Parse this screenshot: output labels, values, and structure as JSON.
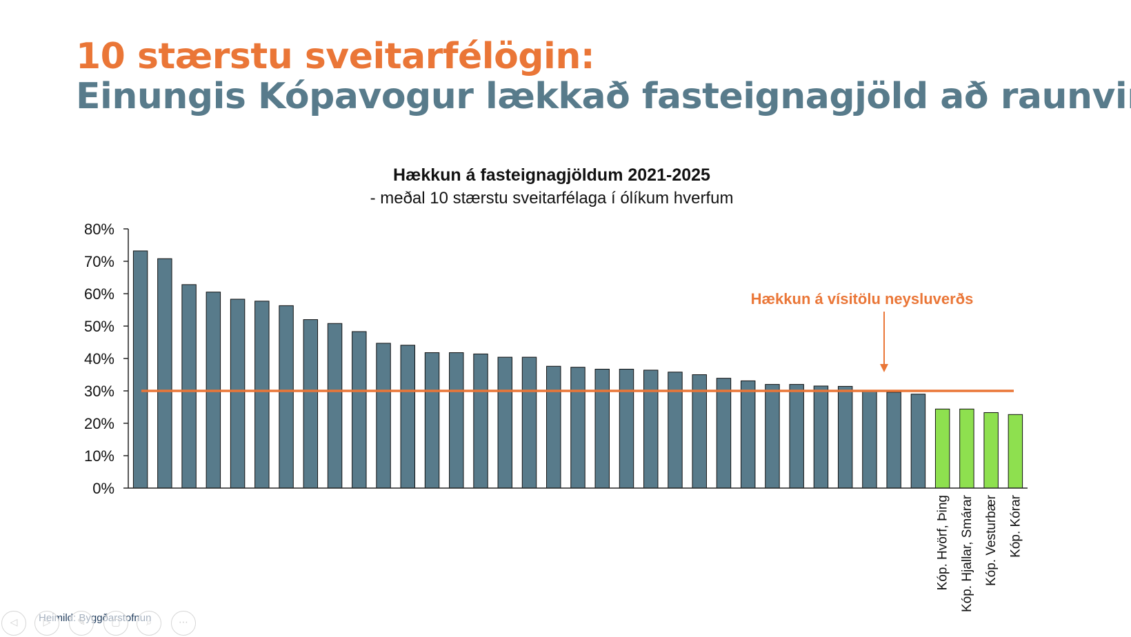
{
  "slide": {
    "title_line1": "10 stærstu sveitarfélögin:",
    "title_line2": "Einungis Kópavogur lækkað fasteignagjöld að raunvirði",
    "source": "Heimild: Byggðarstofnun"
  },
  "colors": {
    "title_orange": "#ea7637",
    "title_teal": "#587b8b",
    "bar_default": "#587b8b",
    "bar_highlight": "#8ee04f",
    "reference_line": "#ea7637"
  },
  "nav_icons": [
    "previous-icon",
    "next-icon",
    "pen-icon",
    "slides-icon",
    "zoom-icon",
    "more-icon"
  ],
  "chart_data": {
    "type": "bar",
    "title": "Hækkun á fasteignagjöldum 2021-2025",
    "subtitle": "- meðal 10 stærstu sveitarfélaga í ólíkum hverfum",
    "yticks": [
      "0%",
      "10%",
      "20%",
      "30%",
      "40%",
      "50%",
      "60%",
      "70%",
      "80%"
    ],
    "ylim": [
      0,
      80
    ],
    "values": [
      73.2,
      70.8,
      62.8,
      60.5,
      58.3,
      57.7,
      56.3,
      52.0,
      50.8,
      48.3,
      44.7,
      44.1,
      41.8,
      41.8,
      41.4,
      40.4,
      40.4,
      37.6,
      37.3,
      36.7,
      36.7,
      36.4,
      35.8,
      35.0,
      33.9,
      33.1,
      32.0,
      32.0,
      31.5,
      31.4,
      29.9,
      29.6,
      29.0,
      24.4,
      24.4,
      23.3,
      22.7
    ],
    "categories": [
      "",
      "",
      "",
      "",
      "",
      "",
      "",
      "",
      "",
      "",
      "",
      "",
      "",
      "",
      "",
      "",
      "",
      "",
      "",
      "",
      "",
      "",
      "",
      "",
      "",
      "",
      "",
      "",
      "",
      "",
      "",
      "",
      "",
      "Kóp. Hvörf, Þing",
      "Kóp. Hjallar, Smárar",
      "Kóp. Vesturbær",
      "Kóp. Kórar"
    ],
    "highlighted_indices": [
      33,
      34,
      35,
      36
    ],
    "reference_line": {
      "value": 30,
      "label": "Hækkun á vísitölu neysluverðs"
    },
    "grid": false,
    "legend": "none"
  }
}
